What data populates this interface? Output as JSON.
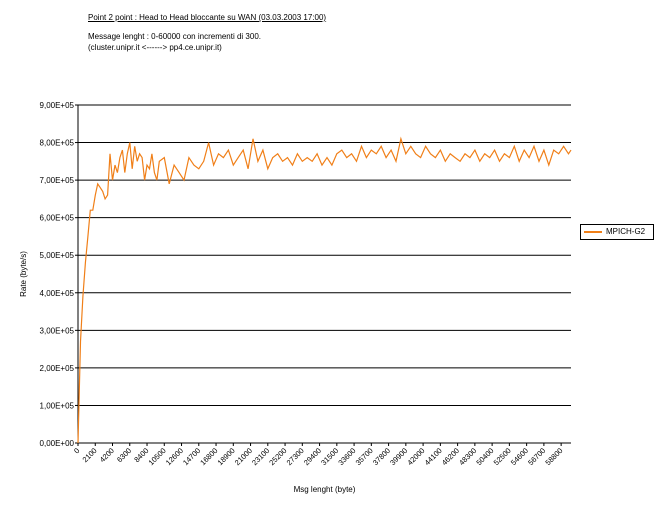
{
  "header": {
    "title": "Point 2 point : Head to Head bloccante su WAN (03.03.2003 17:00)",
    "line1": "Message lenght :  0-60000 con incrementi di 300.",
    "line2": "(cluster.unipr.it     <------>    pp4.ce.unipr.it)"
  },
  "colors": {
    "series": "#f07f18",
    "grid": "#000000",
    "background": "#ffffff"
  },
  "chart_data": {
    "type": "line",
    "xlabel": "Msg lenght (byte)",
    "ylabel": "Rate (byte/s)",
    "ylim": [
      0,
      900000
    ],
    "xlim": [
      0,
      60000
    ],
    "grid": "horizontal",
    "legend_position": "right",
    "ytick_labels": [
      "0,00E+00",
      "1,00E+05",
      "2,00E+05",
      "3,00E+05",
      "4,00E+05",
      "5,00E+05",
      "6,00E+05",
      "7,00E+05",
      "8,00E+05",
      "9,00E+05"
    ],
    "xtick_labels": [
      "0",
      "2100",
      "4200",
      "6300",
      "8400",
      "10500",
      "12600",
      "14700",
      "16800",
      "18900",
      "21000",
      "23100",
      "25200",
      "27300",
      "29400",
      "31500",
      "33600",
      "35700",
      "37800",
      "39900",
      "42000",
      "44100",
      "46200",
      "48300",
      "50400",
      "52500",
      "54600",
      "56700",
      "58800"
    ],
    "series": [
      {
        "name": "MPICH-G2",
        "x": [
          0,
          300,
          600,
          900,
          1200,
          1500,
          1800,
          2100,
          2400,
          2700,
          3000,
          3300,
          3600,
          3900,
          4200,
          4500,
          4800,
          5100,
          5400,
          5700,
          6000,
          6300,
          6600,
          6900,
          7200,
          7500,
          7800,
          8100,
          8400,
          8700,
          9000,
          9300,
          9600,
          9900,
          10500,
          11100,
          11700,
          12300,
          12900,
          13500,
          14100,
          14700,
          15300,
          15900,
          16500,
          17100,
          17700,
          18300,
          18900,
          19500,
          20100,
          20700,
          21300,
          21900,
          22500,
          23100,
          23700,
          24300,
          24900,
          25500,
          26100,
          26700,
          27300,
          27900,
          28500,
          29100,
          29700,
          30300,
          30900,
          31500,
          32100,
          32700,
          33300,
          33900,
          34500,
          35100,
          35700,
          36300,
          36900,
          37500,
          38100,
          38700,
          39300,
          39900,
          40500,
          41100,
          41700,
          42300,
          42900,
          43500,
          44100,
          44700,
          45300,
          45900,
          46500,
          47100,
          47700,
          48300,
          48900,
          49500,
          50100,
          50700,
          51300,
          51900,
          52500,
          53100,
          53700,
          54300,
          54900,
          55500,
          56100,
          56700,
          57300,
          57900,
          58500,
          59100,
          59700,
          60000
        ],
        "values": [
          0,
          270000,
          390000,
          480000,
          550000,
          620000,
          620000,
          660000,
          690000,
          680000,
          670000,
          650000,
          660000,
          770000,
          700000,
          740000,
          720000,
          760000,
          780000,
          720000,
          770000,
          800000,
          730000,
          790000,
          750000,
          770000,
          760000,
          700000,
          740000,
          730000,
          770000,
          720000,
          700000,
          750000,
          760000,
          690000,
          740000,
          720000,
          700000,
          760000,
          740000,
          730000,
          750000,
          800000,
          740000,
          770000,
          760000,
          780000,
          740000,
          760000,
          780000,
          730000,
          810000,
          750000,
          780000,
          730000,
          760000,
          770000,
          750000,
          760000,
          740000,
          770000,
          750000,
          760000,
          750000,
          770000,
          740000,
          760000,
          740000,
          770000,
          780000,
          760000,
          770000,
          750000,
          790000,
          760000,
          780000,
          770000,
          790000,
          760000,
          780000,
          750000,
          810000,
          770000,
          790000,
          770000,
          760000,
          790000,
          770000,
          760000,
          780000,
          750000,
          770000,
          760000,
          750000,
          770000,
          760000,
          780000,
          750000,
          770000,
          760000,
          780000,
          750000,
          770000,
          760000,
          790000,
          750000,
          780000,
          760000,
          790000,
          750000,
          780000,
          740000,
          780000,
          770000,
          790000,
          770000,
          780000
        ]
      }
    ]
  }
}
